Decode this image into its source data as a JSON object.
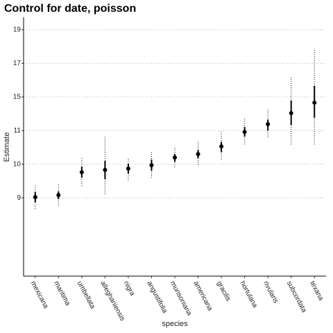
{
  "chart_data": {
    "type": "pointrange",
    "title": "Control for date, poisson",
    "x_label": "species",
    "y_label": "Estimate",
    "categories": [
      "mexicana",
      "maritima",
      "umbellata",
      "alleghaniensis",
      "nigra",
      "angustifolia",
      "munsoniana",
      "americana",
      "gracilis",
      "hortulana",
      "rivularis",
      "subcordata",
      "texana"
    ],
    "values": [
      0.02,
      0.08,
      0.76,
      0.83,
      0.87,
      0.97,
      1.2,
      1.3,
      1.53,
      1.96,
      2.19,
      2.52,
      2.83
    ],
    "inner_low": [
      -0.14,
      -0.04,
      0.6,
      0.56,
      0.72,
      0.81,
      1.07,
      1.18,
      1.36,
      1.82,
      2.0,
      2.17,
      2.38
    ],
    "inner_high": [
      0.17,
      0.19,
      0.93,
      1.1,
      1.01,
      1.14,
      1.3,
      1.43,
      1.67,
      2.11,
      2.33,
      2.89,
      3.33
    ],
    "outer_low": [
      -0.33,
      -0.23,
      0.35,
      0.1,
      0.52,
      0.6,
      0.91,
      0.97,
      1.14,
      1.59,
      1.8,
      1.59,
      1.59
    ],
    "outer_high": [
      0.41,
      0.41,
      1.2,
      1.84,
      1.18,
      1.38,
      1.51,
      1.67,
      1.96,
      2.38,
      2.67,
      3.62,
      4.44
    ],
    "color": "#000000",
    "ylim": [
      -2.33,
      5.37
    ],
    "yticks": [
      {
        "value": 0,
        "label": "9"
      },
      {
        "value": 1,
        "label": "10"
      },
      {
        "value": 2,
        "label": "11"
      },
      {
        "value": 3,
        "label": "15"
      },
      {
        "value": 4,
        "label": "17"
      },
      {
        "value": 5,
        "label": "19"
      }
    ],
    "grid": true
  }
}
